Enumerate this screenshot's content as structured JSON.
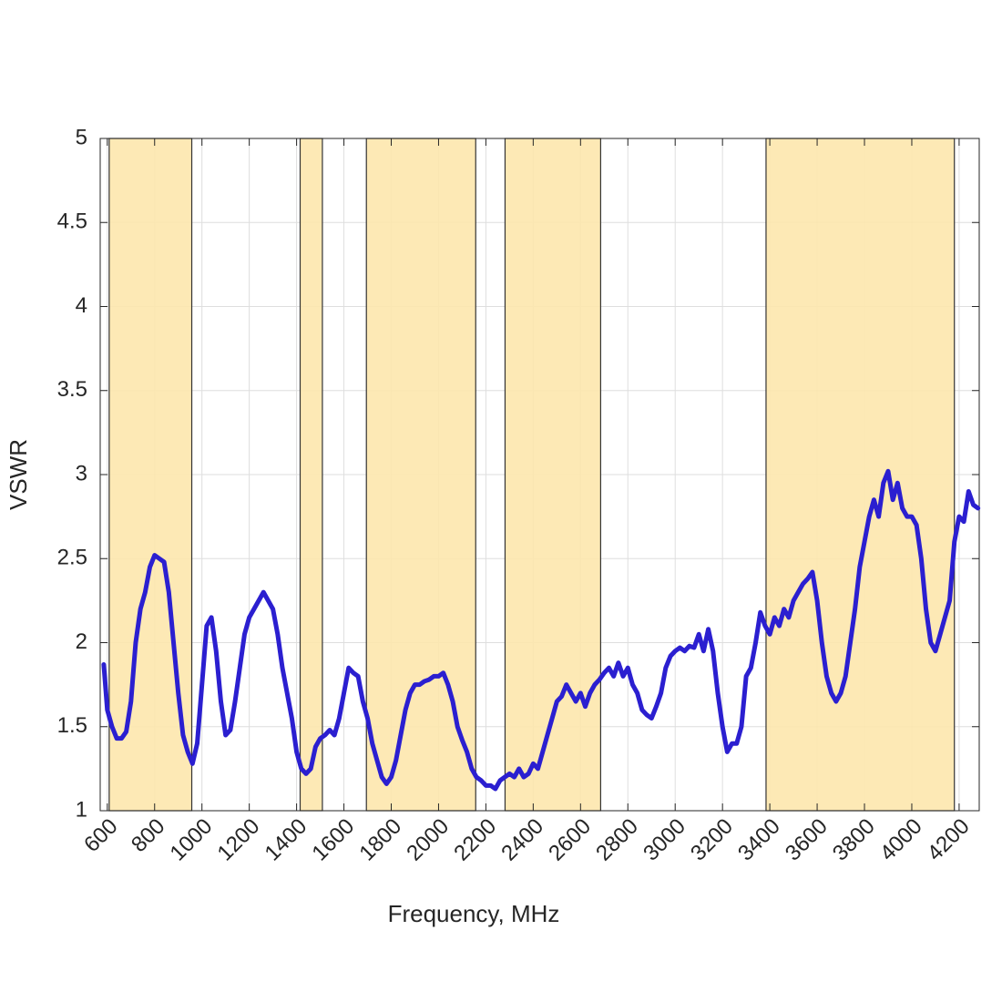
{
  "chart_data": {
    "type": "line",
    "xlabel": "Frequency, MHz",
    "ylabel": "VSWR",
    "xlim": [
      570,
      4285
    ],
    "ylim": [
      1,
      5
    ],
    "xticks": [
      600,
      800,
      1000,
      1200,
      1400,
      1600,
      1800,
      2000,
      2200,
      2400,
      2600,
      2800,
      3000,
      3200,
      3400,
      3600,
      3800,
      4000,
      4200
    ],
    "yticks": [
      1,
      1.5,
      2,
      2.5,
      3,
      3.5,
      4,
      4.5,
      5
    ],
    "grid": true,
    "shaded_regions": [
      [
        608,
        957
      ],
      [
        1415,
        1509
      ],
      [
        1695,
        2157
      ],
      [
        2281,
        2685
      ],
      [
        3384,
        4180
      ]
    ],
    "shade_color": "#fde7ad",
    "x": [
      585,
      600,
      620,
      640,
      660,
      680,
      700,
      720,
      740,
      760,
      780,
      800,
      820,
      840,
      860,
      880,
      900,
      920,
      940,
      960,
      980,
      1000,
      1020,
      1040,
      1060,
      1080,
      1100,
      1120,
      1140,
      1160,
      1180,
      1200,
      1220,
      1240,
      1260,
      1280,
      1300,
      1320,
      1340,
      1360,
      1380,
      1400,
      1420,
      1440,
      1460,
      1480,
      1500,
      1520,
      1540,
      1560,
      1580,
      1600,
      1620,
      1640,
      1660,
      1680,
      1700,
      1720,
      1740,
      1760,
      1780,
      1800,
      1820,
      1840,
      1860,
      1880,
      1900,
      1920,
      1940,
      1960,
      1980,
      2000,
      2020,
      2040,
      2060,
      2080,
      2100,
      2120,
      2140,
      2160,
      2180,
      2200,
      2220,
      2240,
      2260,
      2280,
      2300,
      2320,
      2340,
      2360,
      2380,
      2400,
      2420,
      2440,
      2460,
      2480,
      2500,
      2520,
      2540,
      2560,
      2580,
      2600,
      2620,
      2640,
      2660,
      2680,
      2700,
      2720,
      2740,
      2760,
      2780,
      2800,
      2820,
      2840,
      2860,
      2880,
      2900,
      2920,
      2940,
      2960,
      2980,
      3000,
      3020,
      3040,
      3060,
      3080,
      3100,
      3120,
      3140,
      3160,
      3180,
      3200,
      3220,
      3240,
      3260,
      3280,
      3300,
      3320,
      3340,
      3360,
      3380,
      3400,
      3420,
      3440,
      3460,
      3480,
      3500,
      3520,
      3540,
      3560,
      3580,
      3600,
      3620,
      3640,
      3660,
      3680,
      3700,
      3720,
      3740,
      3760,
      3780,
      3800,
      3820,
      3840,
      3860,
      3880,
      3900,
      3920,
      3940,
      3960,
      3980,
      4000,
      4020,
      4040,
      4060,
      4080,
      4100,
      4120,
      4140,
      4160,
      4180,
      4200,
      4220,
      4240,
      4260,
      4280
    ],
    "series": [
      {
        "name": "VSWR",
        "color": "#2b1fd0",
        "values": [
          1.87,
          1.6,
          1.5,
          1.43,
          1.43,
          1.47,
          1.65,
          2.0,
          2.2,
          2.3,
          2.45,
          2.52,
          2.5,
          2.48,
          2.3,
          2.0,
          1.7,
          1.45,
          1.35,
          1.28,
          1.4,
          1.75,
          2.1,
          2.15,
          1.95,
          1.65,
          1.45,
          1.48,
          1.65,
          1.85,
          2.05,
          2.15,
          2.2,
          2.25,
          2.3,
          2.25,
          2.2,
          2.05,
          1.85,
          1.7,
          1.55,
          1.35,
          1.25,
          1.22,
          1.25,
          1.38,
          1.43,
          1.45,
          1.48,
          1.45,
          1.55,
          1.7,
          1.85,
          1.82,
          1.8,
          1.65,
          1.55,
          1.4,
          1.3,
          1.2,
          1.16,
          1.2,
          1.3,
          1.45,
          1.6,
          1.7,
          1.75,
          1.75,
          1.77,
          1.78,
          1.8,
          1.8,
          1.82,
          1.75,
          1.65,
          1.5,
          1.42,
          1.35,
          1.25,
          1.2,
          1.18,
          1.15,
          1.15,
          1.13,
          1.18,
          1.2,
          1.22,
          1.2,
          1.25,
          1.2,
          1.22,
          1.28,
          1.25,
          1.35,
          1.45,
          1.55,
          1.65,
          1.68,
          1.75,
          1.7,
          1.65,
          1.7,
          1.62,
          1.7,
          1.75,
          1.78,
          1.82,
          1.85,
          1.8,
          1.88,
          1.8,
          1.85,
          1.75,
          1.7,
          1.6,
          1.57,
          1.55,
          1.62,
          1.7,
          1.85,
          1.92,
          1.95,
          1.97,
          1.95,
          1.98,
          1.97,
          2.05,
          1.95,
          2.08,
          1.95,
          1.7,
          1.5,
          1.35,
          1.4,
          1.4,
          1.5,
          1.8,
          1.85,
          2.0,
          2.18,
          2.1,
          2.05,
          2.15,
          2.1,
          2.2,
          2.15,
          2.25,
          2.3,
          2.35,
          2.38,
          2.42,
          2.25,
          2.0,
          1.8,
          1.7,
          1.65,
          1.7,
          1.8,
          2.0,
          2.2,
          2.45,
          2.6,
          2.75,
          2.85,
          2.75,
          2.95,
          3.02,
          2.85,
          2.95,
          2.8,
          2.75,
          2.75,
          2.7,
          2.5,
          2.2,
          2.0,
          1.95,
          2.05,
          2.15,
          2.25,
          2.6,
          2.75,
          2.72,
          2.9,
          2.82,
          2.8
        ]
      }
    ]
  }
}
